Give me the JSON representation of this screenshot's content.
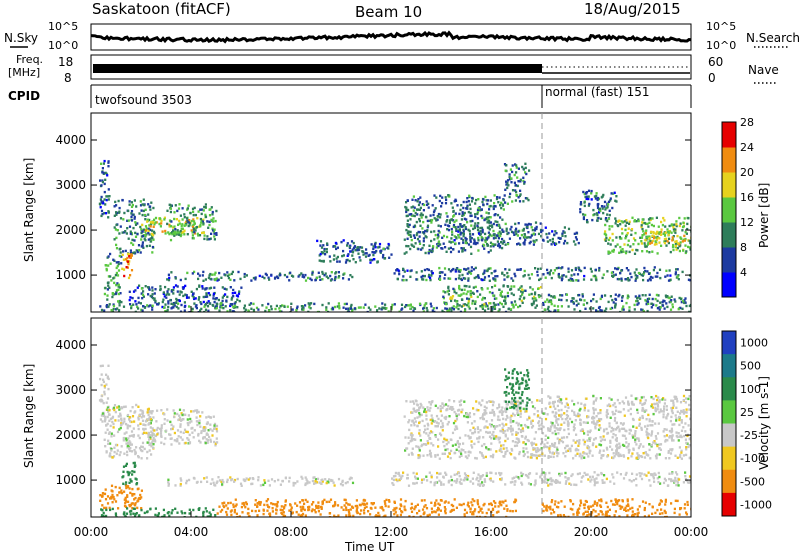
{
  "header": {
    "station": "Saskatoon (fitACF)",
    "beam": "Beam 10",
    "date": "18/Aug/2015"
  },
  "noise_panel": {
    "left_label": "N.Sky",
    "right_label": "N.Search",
    "left_ticks": [
      "10^5",
      "10^0"
    ],
    "right_ticks": [
      "10^5",
      "10^0"
    ]
  },
  "freq_panel": {
    "left_label_1": "Freq.",
    "left_label_2": "[MHz]",
    "left_ticks": [
      "18",
      "8"
    ],
    "right_label": "Nave",
    "right_ticks": [
      "60",
      "0"
    ]
  },
  "cpid_panel": {
    "label": "CPID",
    "programs": [
      {
        "name": "twofsound 3503",
        "start_hour": 0,
        "end_hour": 18
      },
      {
        "name": "normal (fast) 151",
        "start_hour": 18,
        "end_hour": 24
      }
    ]
  },
  "chart_data": [
    {
      "type": "heatmap",
      "title": "",
      "quantity": "Power",
      "ylabel": "Slant Range [km]",
      "xlim": [
        0,
        24
      ],
      "ylim": [
        180,
        4600
      ],
      "yticks": [
        1000,
        2000,
        3000,
        4000
      ],
      "colorbar": {
        "label": "Power [dB]",
        "ticks": [
          "4",
          "8",
          "12",
          "16",
          "20",
          "24",
          "28"
        ],
        "range": [
          0,
          30
        ],
        "colors": [
          "#0000ff",
          "#1c3aa0",
          "#2e7d5a",
          "#5ac840",
          "#e6d21e",
          "#f08c10",
          "#e60000"
        ]
      },
      "regions": [
        {
          "hours": [
            0.3,
            0.7
          ],
          "range_km": [
            2300,
            3600
          ],
          "value": 8
        },
        {
          "hours": [
            0.5,
            1.2
          ],
          "range_km": [
            400,
            1500
          ],
          "value": 12
        },
        {
          "hours": [
            0.9,
            2.5
          ],
          "range_km": [
            1500,
            2700
          ],
          "value": 10
        },
        {
          "hours": [
            1.2,
            1.6
          ],
          "range_km": [
            900,
            1500
          ],
          "value": 22
        },
        {
          "hours": [
            2.0,
            4.5
          ],
          "range_km": [
            1900,
            2300
          ],
          "value": 18
        },
        {
          "hours": [
            3.0,
            5.0
          ],
          "range_km": [
            1800,
            2600
          ],
          "value": 12
        },
        {
          "hours": [
            1.5,
            6.0
          ],
          "range_km": [
            300,
            800
          ],
          "value": 8
        },
        {
          "hours": [
            3.0,
            10.5
          ],
          "range_km": [
            900,
            1100
          ],
          "value": 9
        },
        {
          "hours": [
            0.3,
            17.0
          ],
          "range_km": [
            200,
            400
          ],
          "value": 11
        },
        {
          "hours": [
            9.0,
            12.0
          ],
          "range_km": [
            1300,
            1800
          ],
          "value": 8
        },
        {
          "hours": [
            12.5,
            16.5
          ],
          "range_km": [
            1500,
            2800
          ],
          "value": 10
        },
        {
          "hours": [
            14.5,
            18.0
          ],
          "range_km": [
            1700,
            2200
          ],
          "value": 9
        },
        {
          "hours": [
            16.5,
            17.5
          ],
          "range_km": [
            2600,
            3500
          ],
          "value": 10
        },
        {
          "hours": [
            12.0,
            24.0
          ],
          "range_km": [
            900,
            1200
          ],
          "value": 9
        },
        {
          "hours": [
            14.0,
            18.0
          ],
          "range_km": [
            300,
            800
          ],
          "value": 13
        },
        {
          "hours": [
            18.0,
            19.5
          ],
          "range_km": [
            1700,
            2100
          ],
          "value": 8
        },
        {
          "hours": [
            19.5,
            21.0
          ],
          "range_km": [
            2200,
            2900
          ],
          "value": 9
        },
        {
          "hours": [
            20.5,
            24.0
          ],
          "range_km": [
            1500,
            2300
          ],
          "value": 14
        },
        {
          "hours": [
            22.0,
            24.0
          ],
          "range_km": [
            1700,
            2000
          ],
          "value": 20
        },
        {
          "hours": [
            18.0,
            24.0
          ],
          "range_km": [
            200,
            600
          ],
          "value": 10
        }
      ]
    },
    {
      "type": "heatmap",
      "title": "",
      "quantity": "Velocity",
      "ylabel": "Slant Range [km]",
      "xlabel": "Time UT",
      "xlim": [
        0,
        24
      ],
      "ylim": [
        180,
        4600
      ],
      "xticks": [
        "00:00",
        "04:00",
        "08:00",
        "12:00",
        "16:00",
        "20:00",
        "00:00"
      ],
      "yticks": [
        1000,
        2000,
        3000,
        4000
      ],
      "colorbar": {
        "label": "Velocity [m s-1]",
        "ticks": [
          "1000",
          "500",
          "100",
          "25",
          "-25",
          "-100",
          "-500",
          "-1000"
        ],
        "colors": [
          "#2040c0",
          "#1c7a8a",
          "#2a8a4a",
          "#5ac840",
          "#c8c8c8",
          "#f0c820",
          "#f08c10",
          "#e60000"
        ]
      },
      "regions": [
        {
          "hours": [
            0.3,
            0.7
          ],
          "range_km": [
            2300,
            3600
          ],
          "value": 0
        },
        {
          "hours": [
            0.5,
            2.5
          ],
          "range_km": [
            1500,
            2700
          ],
          "value": 0
        },
        {
          "hours": [
            1.2,
            1.8
          ],
          "range_km": [
            900,
            1500
          ],
          "value": 150
        },
        {
          "hours": [
            2.0,
            5.0
          ],
          "range_km": [
            1800,
            2600
          ],
          "value": 0
        },
        {
          "hours": [
            0.3,
            2.0
          ],
          "range_km": [
            400,
            900
          ],
          "value": -150
        },
        {
          "hours": [
            3.0,
            10.5
          ],
          "range_km": [
            900,
            1100
          ],
          "value": 0
        },
        {
          "hours": [
            5.0,
            17.0
          ],
          "range_km": [
            200,
            600
          ],
          "value": -150
        },
        {
          "hours": [
            0.3,
            5.0
          ],
          "range_km": [
            200,
            400
          ],
          "value": 120
        },
        {
          "hours": [
            12.5,
            18.0
          ],
          "range_km": [
            1500,
            2800
          ],
          "value": 0
        },
        {
          "hours": [
            16.5,
            17.5
          ],
          "range_km": [
            2600,
            3500
          ],
          "value": 200
        },
        {
          "hours": [
            12.0,
            24.0
          ],
          "range_km": [
            900,
            1200
          ],
          "value": 0
        },
        {
          "hours": [
            18.0,
            24.0
          ],
          "range_km": [
            1500,
            2900
          ],
          "value": 0
        },
        {
          "hours": [
            18.0,
            24.0
          ],
          "range_km": [
            200,
            600
          ],
          "value": -150
        }
      ]
    }
  ]
}
